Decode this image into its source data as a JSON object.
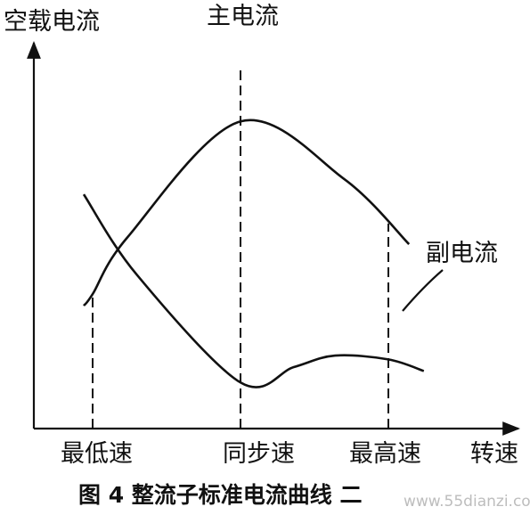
{
  "chart_data": {
    "type": "line",
    "ylabel": "空载电流",
    "xlabel": "转速",
    "x_ticks": [
      "最低速",
      "同步速",
      "最高速"
    ],
    "grid": false,
    "series": [
      {
        "name": "主电流",
        "points": [
          [
            -0.03,
            0.32
          ],
          [
            0.0,
            0.35
          ],
          [
            0.12,
            0.5
          ],
          [
            0.5,
            0.8
          ],
          [
            0.85,
            0.65
          ],
          [
            1.07,
            0.48
          ]
        ]
      },
      {
        "name": "副电流",
        "points": [
          [
            -0.03,
            0.61
          ],
          [
            0.15,
            0.4
          ],
          [
            0.5,
            0.12
          ],
          [
            0.68,
            0.16
          ],
          [
            0.82,
            0.19
          ],
          [
            1.0,
            0.18
          ],
          [
            1.12,
            0.15
          ]
        ]
      }
    ],
    "caption": "图 4  整流子标准电流曲线 二",
    "watermark": "www.55dianzi.com"
  }
}
